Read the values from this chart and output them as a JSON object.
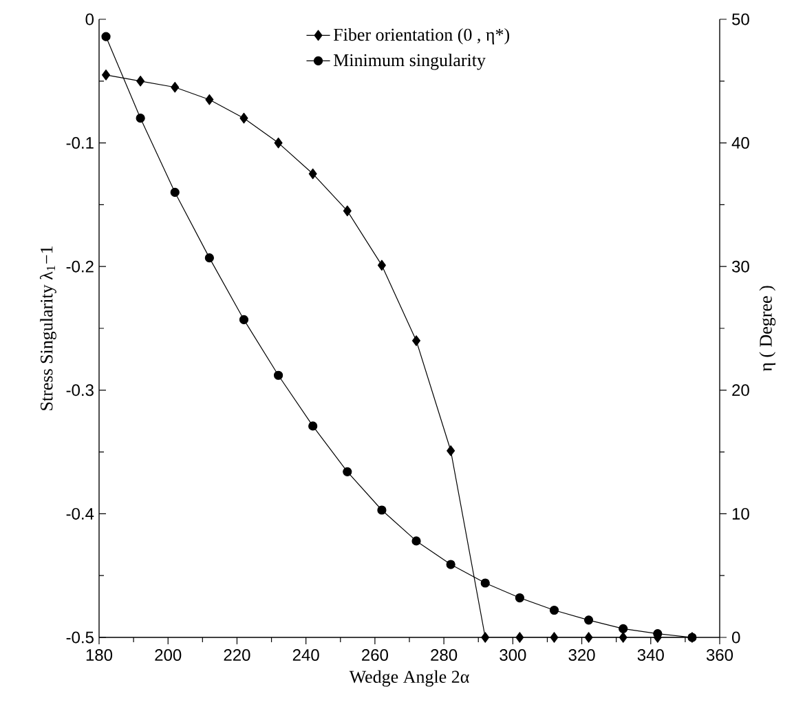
{
  "chart_data": {
    "type": "line",
    "xlabel": "Wedge Angle 2α",
    "ylabel": "Stress Singularity λ$_{1}$−1",
    "y2label": "η ( Degree )",
    "legend": "top",
    "x": [
      182,
      192,
      202,
      212,
      222,
      232,
      242,
      252,
      262,
      272,
      282,
      292,
      302,
      312,
      322,
      332,
      342,
      352
    ],
    "xlim": [
      180,
      360
    ],
    "ylim": [
      -0.5,
      0
    ],
    "y2lim": [
      0,
      50
    ],
    "xticks": [
      180,
      {
        "value": 190,
        "label": null
      },
      200,
      {
        "value": 210,
        "label": null
      },
      220,
      {
        "value": 230,
        "label": null
      },
      240,
      {
        "value": 250,
        "label": null
      },
      260,
      {
        "value": 270,
        "label": null
      },
      280,
      {
        "value": 290,
        "label": null
      },
      300,
      {
        "value": 310,
        "label": null
      },
      320,
      {
        "value": 330,
        "label": null
      },
      340,
      {
        "value": 350,
        "label": null
      },
      360
    ],
    "yticks": [
      -0.5,
      {
        "value": -0.45,
        "label": null
      },
      -0.4,
      {
        "value": -0.35,
        "label": null
      },
      -0.3,
      {
        "value": -0.25,
        "label": null
      },
      -0.2,
      {
        "value": -0.15,
        "label": null
      },
      -0.1,
      {
        "value": -0.05,
        "label": null
      },
      0
    ],
    "y2ticks": [
      0,
      {
        "value": 5,
        "label": null
      },
      10,
      {
        "value": 15,
        "label": null
      },
      20,
      {
        "value": 25,
        "label": null
      },
      30,
      {
        "value": 35,
        "label": null
      },
      40,
      {
        "value": 45,
        "label": null
      },
      50
    ],
    "series": [
      {
        "name": "Fiber orientation  (0 , η*)",
        "color": "#000000",
        "marker": "diamond",
        "axis": "y2",
        "values": [
          45.5,
          45.0,
          44.5,
          43.5,
          42.0,
          40.0,
          37.5,
          34.5,
          30.1,
          24.0,
          15.1,
          0,
          0,
          0,
          0,
          0,
          0,
          0
        ]
      },
      {
        "name": "Minimum singularity",
        "color": "#000000",
        "marker": "circle",
        "values": [
          -0.014,
          -0.08,
          -0.14,
          -0.193,
          -0.243,
          -0.288,
          -0.329,
          -0.366,
          -0.397,
          -0.422,
          -0.441,
          -0.456,
          -0.468,
          -0.478,
          -0.486,
          -0.493,
          -0.497,
          -0.5
        ]
      }
    ]
  }
}
